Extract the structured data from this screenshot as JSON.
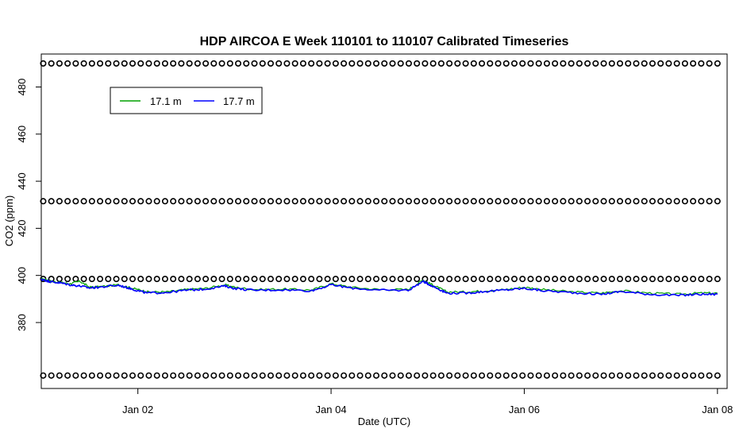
{
  "chart_data": {
    "type": "line",
    "title": "HDP AIRCOA E  Week 110101 to 110107  Calibrated Timeseries",
    "xlabel": "Date (UTC)",
    "ylabel": "CO2 (ppm)",
    "x_unit": "days",
    "xlim": [
      1.0,
      8.1
    ],
    "ylim": [
      352,
      494
    ],
    "x_ticks": [
      {
        "value": 2,
        "label": "Jan 02"
      },
      {
        "value": 4,
        "label": "Jan 04"
      },
      {
        "value": 6,
        "label": "Jan 06"
      },
      {
        "value": 8,
        "label": "Jan 08"
      }
    ],
    "y_ticks": [
      {
        "value": 380,
        "label": "380"
      },
      {
        "value": 400,
        "label": "400"
      },
      {
        "value": 420,
        "label": "420"
      },
      {
        "value": 440,
        "label": "440"
      },
      {
        "value": 460,
        "label": "460"
      },
      {
        "value": 480,
        "label": "480"
      }
    ],
    "legend": {
      "placement": "top-left",
      "entries": [
        {
          "name": "17.1 m",
          "color": "#00a000"
        },
        {
          "name": "17.7 m",
          "color": "#0000ff"
        }
      ]
    },
    "series": [
      {
        "name": "17.1 m",
        "color": "#00a000",
        "x": [
          1.0,
          1.05,
          1.1,
          1.2,
          1.3,
          1.4,
          1.5,
          1.6,
          1.8,
          1.9,
          2.0,
          2.1,
          2.3,
          2.5,
          2.7,
          2.9,
          3.0,
          3.2,
          3.5,
          3.8,
          4.0,
          4.2,
          4.5,
          4.8,
          4.95,
          5.0,
          5.1,
          5.2,
          5.4,
          5.6,
          5.8,
          6.0,
          6.2,
          6.5,
          6.8,
          7.0,
          7.3,
          7.6,
          7.8,
          8.0
        ],
        "y": [
          398.5,
          398.2,
          397.5,
          397.0,
          396.5,
          397.5,
          395.0,
          395.2,
          396.0,
          395.0,
          394.0,
          393.0,
          393.0,
          394.0,
          394.5,
          396.0,
          395.0,
          394.0,
          394.2,
          393.8,
          396.5,
          395.0,
          394.0,
          394.0,
          398.0,
          397.0,
          395.0,
          393.0,
          393.0,
          393.5,
          394.0,
          395.0,
          394.0,
          393.0,
          392.5,
          393.5,
          392.5,
          392.0,
          392.5,
          392.5
        ]
      },
      {
        "name": "17.7 m",
        "color": "#0000ff",
        "x": [
          1.0,
          1.05,
          1.1,
          1.2,
          1.3,
          1.4,
          1.5,
          1.6,
          1.8,
          1.9,
          2.0,
          2.1,
          2.3,
          2.5,
          2.7,
          2.9,
          3.0,
          3.2,
          3.5,
          3.8,
          4.0,
          4.2,
          4.5,
          4.8,
          4.95,
          5.0,
          5.1,
          5.2,
          5.4,
          5.6,
          5.8,
          6.0,
          6.2,
          6.5,
          6.8,
          7.0,
          7.3,
          7.6,
          7.8,
          8.0
        ],
        "y": [
          398.3,
          397.8,
          397.3,
          396.8,
          396.0,
          395.5,
          394.7,
          395.0,
          395.8,
          394.7,
          393.5,
          392.5,
          392.8,
          393.7,
          394.2,
          395.5,
          394.5,
          393.7,
          393.9,
          393.5,
          396.0,
          394.7,
          393.7,
          393.7,
          397.5,
          396.5,
          394.5,
          392.5,
          392.5,
          393.2,
          393.8,
          394.5,
          393.5,
          392.7,
          392.0,
          393.2,
          392.0,
          391.5,
          392.0,
          392.0
        ]
      }
    ],
    "calibration_markers": {
      "symbol": "open-circle",
      "y_levels": [
        357.5,
        398.5,
        431.5,
        490.0
      ],
      "x_start": 1.02,
      "x_end": 8.0,
      "count_per_level": 84
    }
  }
}
